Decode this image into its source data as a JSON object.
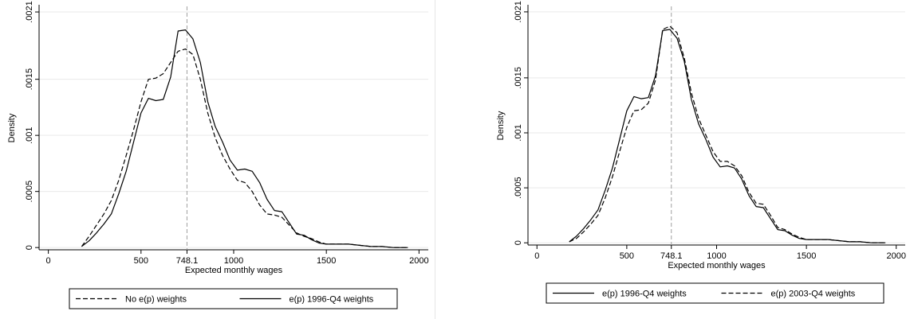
{
  "chart_data": [
    {
      "type": "line",
      "title": "",
      "xlabel": "Expected monthly wages",
      "ylabel": "Density",
      "xlim": [
        -50,
        2050
      ],
      "ylim": [
        -2e-05,
        0.00215
      ],
      "x_ticks": [
        0,
        500,
        748.1,
        1000,
        1500,
        2000
      ],
      "x_tick_labels": [
        "0",
        "500",
        "748.1",
        "1000",
        "1500",
        "2000"
      ],
      "y_ticks": [
        0,
        0.0005,
        0.001,
        0.0015,
        0.0021
      ],
      "y_tick_labels": [
        "0",
        ".0005",
        ".001",
        ".0015",
        ".0021"
      ],
      "reference_line": {
        "x": 748.1,
        "style": "dashed"
      },
      "grid": true,
      "legend_position": "bottom",
      "series": [
        {
          "name": "No e(p) weights",
          "style": "dashed",
          "x": [
            180,
            220,
            260,
            300,
            340,
            380,
            420,
            460,
            500,
            540,
            580,
            620,
            660,
            700,
            740,
            780,
            820,
            860,
            900,
            940,
            980,
            1020,
            1060,
            1100,
            1140,
            1180,
            1220,
            1260,
            1300,
            1340,
            1380,
            1420,
            1460,
            1500,
            1560,
            1620,
            1680,
            1740,
            1800,
            1860,
            1940
          ],
          "y": [
            1e-05,
            0.0001,
            0.0002,
            0.0003,
            0.00042,
            0.0006,
            0.00082,
            0.00105,
            0.0013,
            0.0015,
            0.00151,
            0.00155,
            0.00165,
            0.00175,
            0.00177,
            0.00172,
            0.0015,
            0.0012,
            0.00098,
            0.00082,
            0.0007,
            0.0006,
            0.00058,
            0.0005,
            0.00038,
            0.0003,
            0.00029,
            0.00027,
            0.0002,
            0.00013,
            0.0001,
            8e-05,
            5e-05,
            3e-05,
            3e-05,
            3e-05,
            2e-05,
            1e-05,
            1e-05,
            0.0,
            0.0
          ]
        },
        {
          "name": "e(p) 1996-Q4 weights",
          "style": "solid",
          "x": [
            180,
            220,
            260,
            300,
            340,
            380,
            420,
            460,
            500,
            540,
            580,
            620,
            660,
            700,
            740,
            780,
            820,
            860,
            900,
            940,
            980,
            1020,
            1060,
            1100,
            1140,
            1180,
            1220,
            1260,
            1300,
            1340,
            1380,
            1420,
            1460,
            1500,
            1560,
            1620,
            1680,
            1740,
            1800,
            1860,
            1940
          ],
          "y": [
            1e-05,
            6e-05,
            0.00013,
            0.00021,
            0.0003,
            0.00048,
            0.00068,
            0.00094,
            0.0012,
            0.00133,
            0.00131,
            0.00132,
            0.00152,
            0.00193,
            0.00194,
            0.00186,
            0.00165,
            0.0013,
            0.00108,
            0.00094,
            0.00078,
            0.00069,
            0.0007,
            0.00068,
            0.00058,
            0.00043,
            0.00033,
            0.00032,
            0.00022,
            0.00012,
            0.00011,
            7e-05,
            4e-05,
            3e-05,
            3e-05,
            3e-05,
            2e-05,
            1e-05,
            1e-05,
            0.0,
            0.0
          ]
        }
      ]
    },
    {
      "type": "line",
      "title": "",
      "xlabel": "Expected monthly wages",
      "ylabel": "Density",
      "xlim": [
        -50,
        2050
      ],
      "ylim": [
        -2e-05,
        0.00215
      ],
      "x_ticks": [
        0,
        500,
        748.1,
        1000,
        1500,
        2000
      ],
      "x_tick_labels": [
        "0",
        "500",
        "748.1",
        "1000",
        "1500",
        "2000"
      ],
      "y_ticks": [
        0,
        0.0005,
        0.001,
        0.0015,
        0.0021
      ],
      "y_tick_labels": [
        "0",
        ".0005",
        ".001",
        ".0015",
        ".0021"
      ],
      "reference_line": {
        "x": 748.1,
        "style": "dashed"
      },
      "grid": true,
      "legend_position": "bottom",
      "series": [
        {
          "name": "e(p) 1996-Q4 weights",
          "style": "solid",
          "x": [
            180,
            220,
            260,
            300,
            340,
            380,
            420,
            460,
            500,
            540,
            580,
            620,
            660,
            700,
            740,
            780,
            820,
            860,
            900,
            940,
            980,
            1020,
            1060,
            1100,
            1140,
            1180,
            1220,
            1260,
            1300,
            1340,
            1380,
            1420,
            1460,
            1500,
            1560,
            1620,
            1680,
            1740,
            1800,
            1860,
            1940
          ],
          "y": [
            1e-05,
            6e-05,
            0.00013,
            0.00021,
            0.0003,
            0.00048,
            0.00068,
            0.00094,
            0.0012,
            0.00133,
            0.00131,
            0.00132,
            0.00152,
            0.00193,
            0.00194,
            0.00186,
            0.00165,
            0.0013,
            0.00108,
            0.00094,
            0.00078,
            0.00069,
            0.0007,
            0.00068,
            0.00058,
            0.00043,
            0.00033,
            0.00032,
            0.00022,
            0.00012,
            0.00011,
            7e-05,
            4e-05,
            3e-05,
            3e-05,
            3e-05,
            2e-05,
            1e-05,
            1e-05,
            0.0,
            0.0
          ]
        },
        {
          "name": "e(p) 2003-Q4 weights",
          "style": "dashed",
          "x": [
            180,
            220,
            260,
            300,
            340,
            380,
            420,
            460,
            500,
            540,
            580,
            620,
            660,
            700,
            740,
            780,
            820,
            860,
            900,
            940,
            980,
            1020,
            1060,
            1100,
            1140,
            1180,
            1220,
            1260,
            1300,
            1340,
            1380,
            1420,
            1460,
            1500,
            1560,
            1620,
            1680,
            1740,
            1800,
            1860,
            1940
          ],
          "y": [
            1e-05,
            4e-05,
            0.0001,
            0.00017,
            0.00025,
            0.00041,
            0.0006,
            0.00083,
            0.00105,
            0.0012,
            0.00121,
            0.00127,
            0.00148,
            0.00194,
            0.00197,
            0.00191,
            0.00168,
            0.00136,
            0.00113,
            0.00098,
            0.00083,
            0.00074,
            0.00074,
            0.0007,
            0.00061,
            0.00046,
            0.00036,
            0.00035,
            0.00025,
            0.00014,
            0.00012,
            8e-05,
            5e-05,
            3e-05,
            3e-05,
            3e-05,
            2e-05,
            1e-05,
            1e-05,
            0.0,
            0.0
          ]
        }
      ]
    }
  ]
}
